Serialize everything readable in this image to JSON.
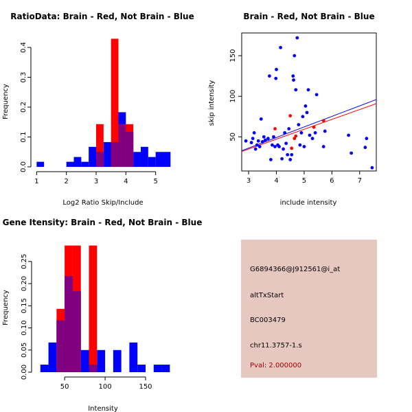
{
  "colors": {
    "red": "#ff0000",
    "blue": "#0000ff",
    "overlap": "#800080",
    "panel_bg": "#e6c8c0",
    "pval": "#a00000"
  },
  "chart_data": [
    {
      "type": "bar",
      "subtype": "histogram",
      "title": "RatioData: Brain - Red, Not Brain - Blue",
      "xlabel": "Log2 Ratio Skip/Include",
      "ylabel": "Frequency",
      "xlim": [
        0.9,
        5.4
      ],
      "ylim": [
        0,
        0.43
      ],
      "bin_width": 0.25,
      "xticks": [
        1,
        2,
        3,
        4,
        5
      ],
      "yticks": [
        0.0,
        0.1,
        0.2,
        0.3,
        0.4
      ],
      "ytick_labels": [
        "0.0",
        "0.1",
        "0.2",
        "0.3",
        "0.4"
      ],
      "series": [
        {
          "name": "Not Brain",
          "color": "blue",
          "bins": [
            [
              1.0,
              0.017
            ],
            [
              1.25,
              0
            ],
            [
              1.5,
              0
            ],
            [
              1.75,
              0
            ],
            [
              2.0,
              0.017
            ],
            [
              2.25,
              0.033
            ],
            [
              2.5,
              0.017
            ],
            [
              2.75,
              0.067
            ],
            [
              3.0,
              0.05
            ],
            [
              3.25,
              0.083
            ],
            [
              3.5,
              0.083
            ],
            [
              3.75,
              0.183
            ],
            [
              4.0,
              0.117
            ],
            [
              4.25,
              0.05
            ],
            [
              4.5,
              0.067
            ],
            [
              4.75,
              0.033
            ],
            [
              5.0,
              0.05
            ],
            [
              5.25,
              0.05
            ]
          ]
        },
        {
          "name": "Brain",
          "color": "red",
          "bins": [
            [
              3.0,
              0.143
            ],
            [
              3.25,
              0
            ],
            [
              3.5,
              0.429
            ],
            [
              3.75,
              0.143
            ],
            [
              4.0,
              0.143
            ]
          ]
        }
      ]
    },
    {
      "type": "scatter",
      "title": "Brain - Red, Not Brain - Blue",
      "xlabel": "include intensity",
      "ylabel": "skip intensity",
      "xlim": [
        2.75,
        7.6
      ],
      "ylim": [
        8,
        178
      ],
      "xticks": [
        3,
        4,
        5,
        6,
        7
      ],
      "yticks": [
        50,
        100,
        150
      ],
      "series": [
        {
          "name": "Not Brain",
          "color": "blue",
          "points": [
            [
              2.9,
              45
            ],
            [
              3.1,
              43
            ],
            [
              3.15,
              48
            ],
            [
              3.2,
              55
            ],
            [
              3.25,
              35
            ],
            [
              3.3,
              40
            ],
            [
              3.35,
              45
            ],
            [
              3.4,
              38
            ],
            [
              3.45,
              72
            ],
            [
              3.5,
              44
            ],
            [
              3.55,
              50
            ],
            [
              3.6,
              46
            ],
            [
              3.7,
              48
            ],
            [
              3.75,
              125
            ],
            [
              3.8,
              22
            ],
            [
              3.85,
              40
            ],
            [
              3.9,
              50
            ],
            [
              3.95,
              38
            ],
            [
              3.98,
              122
            ],
            [
              4.0,
              133
            ],
            [
              4.05,
              40
            ],
            [
              4.1,
              38
            ],
            [
              4.15,
              160
            ],
            [
              4.2,
              23
            ],
            [
              4.25,
              35
            ],
            [
              4.3,
              55
            ],
            [
              4.35,
              42
            ],
            [
              4.4,
              28
            ],
            [
              4.45,
              60
            ],
            [
              4.5,
              22
            ],
            [
              4.55,
              28
            ],
            [
              4.6,
              125
            ],
            [
              4.62,
              120
            ],
            [
              4.65,
              150
            ],
            [
              4.7,
              108
            ],
            [
              4.75,
              172
            ],
            [
              4.8,
              65
            ],
            [
              4.85,
              40
            ],
            [
              4.9,
              55
            ],
            [
              4.95,
              75
            ],
            [
              5.0,
              38
            ],
            [
              5.05,
              88
            ],
            [
              5.1,
              80
            ],
            [
              5.15,
              108
            ],
            [
              5.2,
              52
            ],
            [
              5.3,
              48
            ],
            [
              5.4,
              55
            ],
            [
              5.45,
              102
            ],
            [
              5.7,
              38
            ],
            [
              5.75,
              57
            ],
            [
              6.6,
              52
            ],
            [
              6.7,
              30
            ],
            [
              7.2,
              37
            ],
            [
              7.25,
              48
            ],
            [
              7.45,
              12
            ]
          ]
        },
        {
          "name": "Brain",
          "color": "red",
          "points": [
            [
              3.95,
              60
            ],
            [
              4.5,
              76
            ],
            [
              4.55,
              36
            ],
            [
              4.65,
              48
            ],
            [
              4.7,
              51
            ],
            [
              5.35,
              62
            ],
            [
              5.7,
              70
            ]
          ]
        }
      ],
      "fit_lines": [
        {
          "name": "Not Brain",
          "color": "blue",
          "from": [
            2.75,
            33
          ],
          "to": [
            7.6,
            96
          ]
        },
        {
          "name": "Brain",
          "color": "red",
          "from": [
            2.75,
            32
          ],
          "to": [
            7.6,
            91
          ]
        }
      ]
    },
    {
      "type": "bar",
      "subtype": "histogram",
      "title": "Gene Itensity: Brain - Red, Not Brain - Blue",
      "xlabel": "Intensity",
      "ylabel": "Frequency",
      "xlim": [
        10,
        178
      ],
      "ylim": [
        0,
        0.29
      ],
      "bin_width": 10,
      "xticks": [
        50,
        100,
        150
      ],
      "yticks": [
        0.0,
        0.05,
        0.1,
        0.15,
        0.2,
        0.25
      ],
      "ytick_labels": [
        "0.00",
        "0.05",
        "0.10",
        "0.15",
        "0.20",
        "0.25"
      ],
      "series": [
        {
          "name": "Not Brain",
          "color": "blue",
          "bins": [
            [
              20,
              0.017
            ],
            [
              30,
              0.067
            ],
            [
              40,
              0.117
            ],
            [
              50,
              0.217
            ],
            [
              60,
              0.183
            ],
            [
              70,
              0.05
            ],
            [
              80,
              0.017
            ],
            [
              90,
              0.05
            ],
            [
              100,
              0
            ],
            [
              110,
              0.05
            ],
            [
              120,
              0
            ],
            [
              130,
              0.067
            ],
            [
              140,
              0.017
            ],
            [
              150,
              0
            ],
            [
              160,
              0.017
            ],
            [
              170,
              0.017
            ]
          ]
        },
        {
          "name": "Brain",
          "color": "red",
          "bins": [
            [
              40,
              0.143
            ],
            [
              50,
              0.286
            ],
            [
              60,
              0.286
            ],
            [
              70,
              0
            ],
            [
              80,
              0.286
            ]
          ]
        }
      ]
    }
  ],
  "info_panel": {
    "probe_id": "G6894366@J912561@i_at",
    "event_type": "altTxStart",
    "accession": "BC003479",
    "locus": "chr11.3757-1.s",
    "pval": "Pval: 2.000000"
  }
}
